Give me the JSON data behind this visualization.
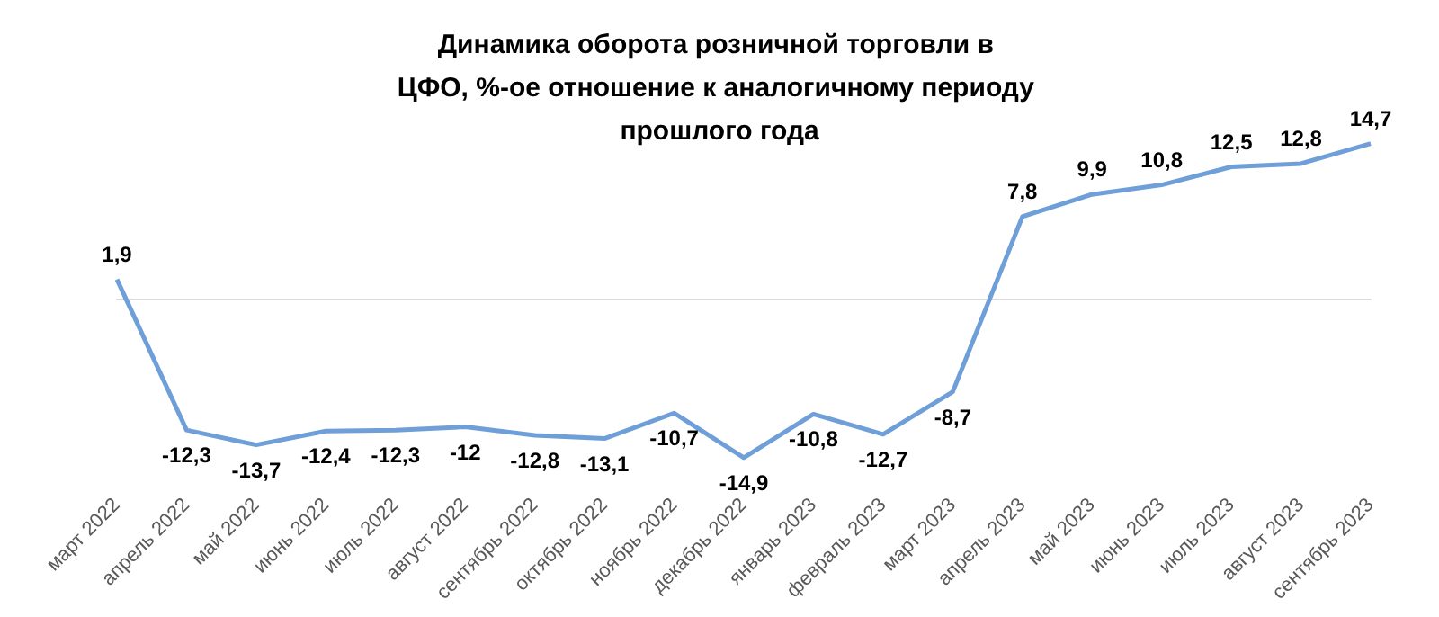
{
  "chart_data": {
    "type": "line",
    "title": "Динамика оборота розничной торговли в ЦФО, %-ое отношение к аналогичному периоду прошлого года",
    "categories": [
      "март 2022",
      "апрель 2022",
      "май 2022",
      "июнь 2022",
      "июль 2022",
      "август 2022",
      "сентябрь 2022",
      "октябрь 2022",
      "ноябрь 2022",
      "декабрь 2022",
      "январь 2023",
      "февраль 2023",
      "март 2023",
      "апрель 2023",
      "май 2023",
      "июнь 2023",
      "июль 2023",
      "август 2023",
      "сентябрь 2023"
    ],
    "series": [
      {
        "color": "#6f9fd8",
        "values": [
          1.9,
          -12.3,
          -13.7,
          -12.4,
          -12.3,
          -12,
          -12.8,
          -13.1,
          -10.7,
          -14.9,
          -10.8,
          -12.7,
          -8.7,
          7.8,
          9.9,
          10.8,
          12.5,
          12.8,
          14.7
        ],
        "value_labels": [
          "1,9",
          "-12,3",
          "-13,7",
          "-12,4",
          "-12,3",
          "-12",
          "-12,8",
          "-13,1",
          "-10,7",
          "-14,9",
          "-10,8",
          "-12,7",
          "-8,7",
          "7,8",
          "9,9",
          "10,8",
          "12,5",
          "12,8",
          "14,7"
        ]
      }
    ],
    "marker": "none",
    "line_style": "solid",
    "grid": false,
    "tick_labels": "x"
  }
}
